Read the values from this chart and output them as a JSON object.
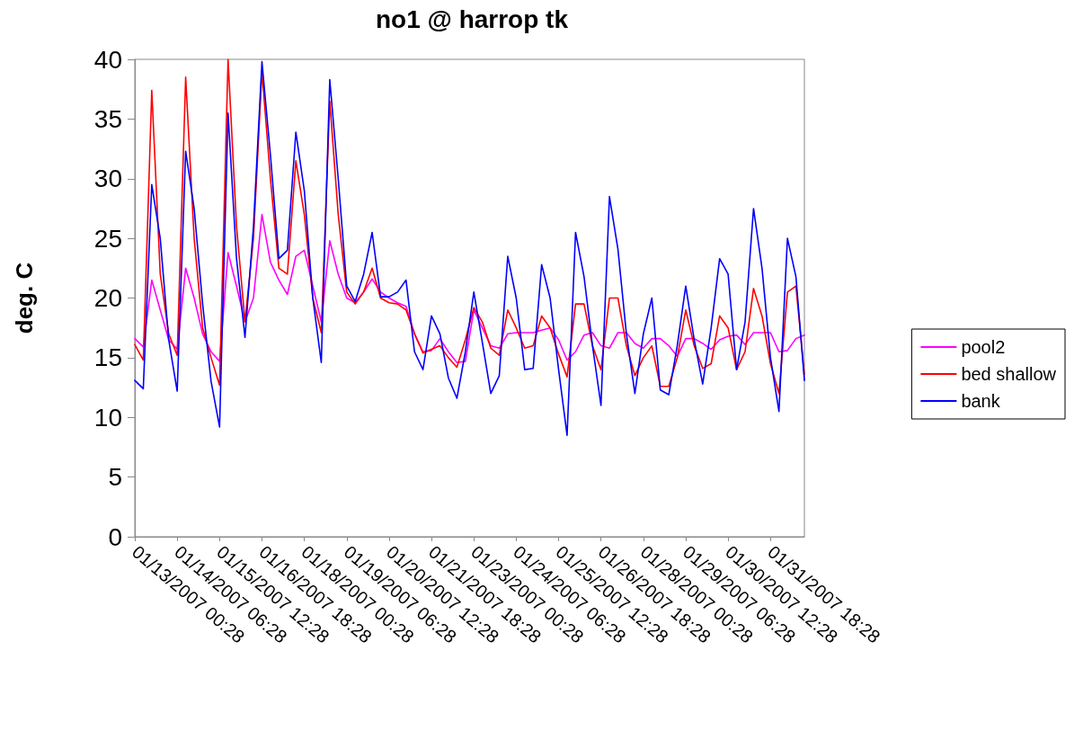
{
  "chart_data": {
    "type": "line",
    "title": "no1 @ harrop tk",
    "ylabel": "deg. C",
    "categories": [
      "01/13/2007 00:28",
      null,
      null,
      null,
      null,
      "01/14/2007 06:28",
      null,
      null,
      null,
      null,
      "01/15/2007 12:28",
      null,
      null,
      null,
      null,
      "01/16/2007 18:28",
      null,
      null,
      null,
      null,
      "01/18/2007 00:28",
      null,
      null,
      null,
      null,
      "01/19/2007 06:28",
      null,
      null,
      null,
      null,
      "01/20/2007 12:28",
      null,
      null,
      null,
      null,
      "01/21/2007 18:28",
      null,
      null,
      null,
      null,
      "01/23/2007 00:28",
      null,
      null,
      null,
      null,
      "01/24/2007 06:28",
      null,
      null,
      null,
      null,
      "01/25/2007 12:28",
      null,
      null,
      null,
      null,
      "01/26/2007 18:28",
      null,
      null,
      null,
      null,
      "01/28/2007 00:28",
      null,
      null,
      null,
      null,
      "01/29/2007 06:28",
      null,
      null,
      null,
      null,
      "01/30/2007 12:28",
      null,
      null,
      null,
      null,
      "01/31/2007 18:28",
      null,
      null,
      null,
      null
    ],
    "series": [
      {
        "name": "pool2",
        "color": "#ff00ff",
        "values": [
          16.6,
          15.9,
          21.5,
          19,
          16.5,
          15.7,
          22.5,
          20,
          17,
          15.5,
          14.7,
          23.8,
          21,
          18,
          20,
          27,
          23,
          21.5,
          20.3,
          23.5,
          24,
          21,
          18,
          24.8,
          22,
          20,
          19.6,
          20.5,
          21.6,
          20.5,
          20,
          19.6,
          19.3,
          17,
          15.5,
          15.6,
          16.6,
          15.5,
          14.6,
          14.7,
          19,
          17.5,
          16,
          15.8,
          17,
          17.1,
          17.1,
          17.1,
          17.3,
          17.5,
          16.5,
          14.8,
          15.5,
          16.9,
          17.1,
          16,
          15.8,
          17.1,
          17.1,
          16.2,
          15.8,
          16.6,
          16.6,
          16,
          15.1,
          16.6,
          16.6,
          16.2,
          15.7,
          16.5,
          16.8,
          16.9,
          16.1,
          17.1,
          17.1,
          17.1,
          15.5,
          15.6,
          16.6,
          16.9
        ]
      },
      {
        "name": "bed shallow",
        "color": "#ff0000",
        "values": [
          16.1,
          14.8,
          37.4,
          22,
          17,
          15.2,
          38.5,
          25,
          17.5,
          15,
          12.7,
          40,
          26,
          18,
          25,
          39,
          30,
          22.5,
          22,
          31.5,
          27,
          20,
          17.1,
          36.5,
          27,
          20.5,
          19.5,
          20.5,
          22.5,
          20,
          19.6,
          19.5,
          19,
          17,
          15.4,
          15.7,
          16,
          15,
          14.2,
          16.5,
          19.2,
          18,
          15.8,
          15.2,
          19,
          17.5,
          15.8,
          16,
          18.5,
          17.5,
          15.3,
          13.4,
          19.5,
          19.5,
          16,
          14,
          20,
          20,
          16,
          13.5,
          15,
          16,
          12.6,
          12.6,
          15,
          19,
          16,
          14.1,
          14.5,
          18.5,
          17.5,
          14,
          15.5,
          20.8,
          18.5,
          14.5,
          12,
          20.5,
          21,
          13.6
        ]
      },
      {
        "name": "bank",
        "color": "#0000ff",
        "values": [
          13.1,
          12.4,
          29.5,
          25,
          16.5,
          12.2,
          32.3,
          27.5,
          19.5,
          13,
          9.2,
          35.5,
          23.3,
          16.7,
          26,
          39.8,
          32,
          23.3,
          24,
          33.9,
          29,
          20,
          14.6,
          38.3,
          30,
          21,
          19.7,
          22,
          25.5,
          20.1,
          20.1,
          20.5,
          21.5,
          15.5,
          14,
          18.5,
          17,
          13.3,
          11.6,
          15.5,
          20.5,
          16.3,
          12,
          13.5,
          23.5,
          20,
          14,
          14.1,
          22.8,
          20,
          14,
          8.5,
          25.5,
          21.8,
          16,
          11,
          28.5,
          24.1,
          17,
          12,
          17,
          20,
          12.3,
          11.9,
          16,
          21,
          16.5,
          12.8,
          17.5,
          23.3,
          22,
          14,
          18,
          27.5,
          22.5,
          15,
          10.5,
          25,
          21.8,
          13.1
        ]
      }
    ],
    "ylim": [
      0,
      40
    ],
    "yticks": [
      0,
      5,
      10,
      15,
      20,
      25,
      30,
      35,
      40
    ],
    "grid": false,
    "legend": "right",
    "marker": "none",
    "line_style": "solid"
  }
}
